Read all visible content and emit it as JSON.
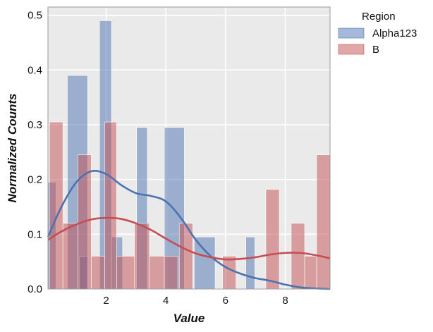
{
  "chart_data": {
    "type": "bar",
    "xlabel": "Value",
    "ylabel": "Normalized Counts",
    "xlim": [
      0.05,
      9.5
    ],
    "ylim": [
      0,
      0.515
    ],
    "xticks": [
      2,
      4,
      6,
      8
    ],
    "yticks": [
      0.0,
      0.1,
      0.2,
      0.3,
      0.4,
      0.5
    ],
    "ytick_labels": [
      "0.0",
      "0.1",
      "0.2",
      "0.3",
      "0.4",
      "0.5"
    ],
    "grid": true,
    "legend": {
      "title": "Region",
      "placement": "outside-top-right"
    },
    "series": [
      {
        "name": "Alpha123",
        "color": "#4c72b0",
        "bars": [
          {
            "x0": 0.05,
            "x1": 0.32,
            "value": 0.195
          },
          {
            "x0": 0.7,
            "x1": 1.38,
            "value": 0.39
          },
          {
            "x0": 1.1,
            "x1": 1.38,
            "value": 0.06
          },
          {
            "x0": 1.78,
            "x1": 2.18,
            "value": 0.49
          },
          {
            "x0": 2.18,
            "x1": 2.55,
            "value": 0.095
          },
          {
            "x0": 3.02,
            "x1": 3.38,
            "value": 0.295
          },
          {
            "x0": 3.95,
            "x1": 4.62,
            "value": 0.295
          },
          {
            "x0": 4.95,
            "x1": 5.65,
            "value": 0.095
          },
          {
            "x0": 6.68,
            "x1": 6.98,
            "value": 0.095
          }
        ],
        "kde": {
          "x": [
            0.05,
            0.5,
            1.0,
            1.5,
            2.0,
            2.5,
            3.0,
            3.5,
            4.0,
            4.5,
            5.0,
            5.5,
            6.0,
            6.5,
            7.0,
            7.5,
            8.0,
            8.5,
            9.0,
            9.5
          ],
          "y": [
            0.095,
            0.15,
            0.195,
            0.215,
            0.21,
            0.19,
            0.175,
            0.17,
            0.16,
            0.13,
            0.09,
            0.06,
            0.04,
            0.028,
            0.02,
            0.015,
            0.008,
            0.003,
            0.001,
            0.0
          ]
        }
      },
      {
        "name": "B",
        "color": "#c44e52",
        "bars": [
          {
            "x0": 0.1,
            "x1": 0.55,
            "value": 0.305
          },
          {
            "x0": 0.55,
            "x1": 1.05,
            "value": 0.12
          },
          {
            "x0": 1.05,
            "x1": 1.5,
            "value": 0.245
          },
          {
            "x0": 1.5,
            "x1": 1.95,
            "value": 0.06
          },
          {
            "x0": 1.95,
            "x1": 2.35,
            "value": 0.305
          },
          {
            "x0": 2.35,
            "x1": 2.95,
            "value": 0.06
          },
          {
            "x0": 2.95,
            "x1": 3.45,
            "value": 0.12
          },
          {
            "x0": 3.45,
            "x1": 3.95,
            "value": 0.06
          },
          {
            "x0": 3.95,
            "x1": 4.4,
            "value": 0.06
          },
          {
            "x0": 4.45,
            "x1": 4.9,
            "value": 0.12
          },
          {
            "x0": 5.9,
            "x1": 6.35,
            "value": 0.06
          },
          {
            "x0": 7.35,
            "x1": 7.8,
            "value": 0.182
          },
          {
            "x0": 8.2,
            "x1": 8.65,
            "value": 0.12
          },
          {
            "x0": 8.65,
            "x1": 9.05,
            "value": 0.06
          },
          {
            "x0": 9.05,
            "x1": 9.5,
            "value": 0.245
          }
        ],
        "kde": {
          "x": [
            0.05,
            0.5,
            1.0,
            1.5,
            2.0,
            2.5,
            3.0,
            3.5,
            4.0,
            4.5,
            5.0,
            5.5,
            6.0,
            6.5,
            7.0,
            7.5,
            8.0,
            8.5,
            9.0,
            9.5
          ],
          "y": [
            0.09,
            0.105,
            0.118,
            0.127,
            0.13,
            0.128,
            0.12,
            0.108,
            0.092,
            0.077,
            0.065,
            0.058,
            0.054,
            0.055,
            0.058,
            0.063,
            0.066,
            0.066,
            0.062,
            0.056
          ]
        }
      }
    ]
  }
}
